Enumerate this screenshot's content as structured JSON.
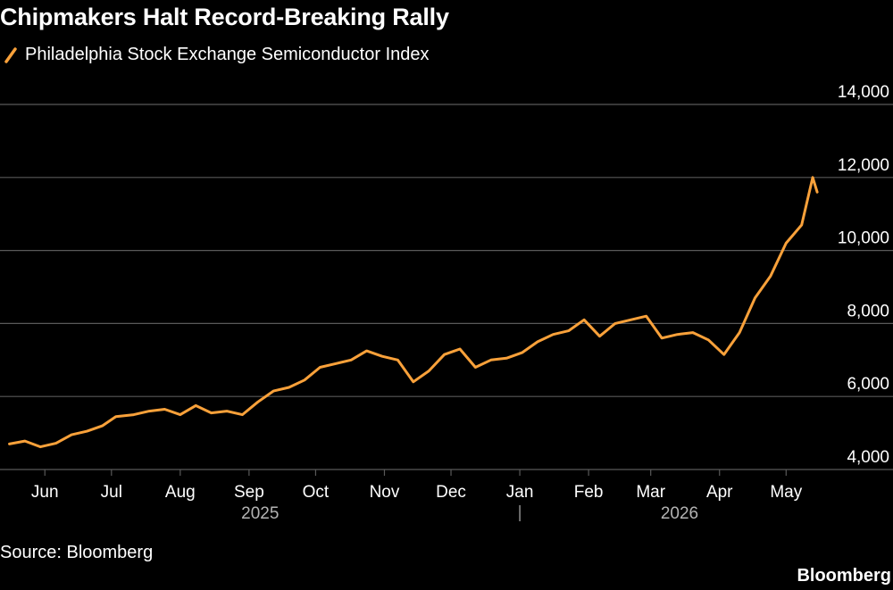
{
  "title": "Chipmakers Halt Record-Breaking Rally",
  "source": "Source: Bloomberg",
  "logo": "Bloomberg",
  "colors": {
    "background": "#000000",
    "series": "#f9a13a",
    "grid": "#595959",
    "text": "#ffffff",
    "muted": "#b3b3b3"
  },
  "chart_data": {
    "type": "line",
    "series": [
      {
        "name": "Philadelphia Stock Exchange Semiconductor Index",
        "x": [
          "2025-05-16",
          "2025-05-23",
          "2025-05-30",
          "2025-06-06",
          "2025-06-13",
          "2025-06-20",
          "2025-06-27",
          "2025-07-03",
          "2025-07-11",
          "2025-07-18",
          "2025-07-25",
          "2025-08-01",
          "2025-08-08",
          "2025-08-15",
          "2025-08-22",
          "2025-08-29",
          "2025-09-05",
          "2025-09-12",
          "2025-09-19",
          "2025-09-26",
          "2025-10-03",
          "2025-10-10",
          "2025-10-17",
          "2025-10-24",
          "2025-10-31",
          "2025-11-07",
          "2025-11-14",
          "2025-11-21",
          "2025-11-28",
          "2025-12-05",
          "2025-12-12",
          "2025-12-19",
          "2025-12-26",
          "2026-01-02",
          "2026-01-09",
          "2026-01-16",
          "2026-01-23",
          "2026-01-30",
          "2026-02-06",
          "2026-02-13",
          "2026-02-20",
          "2026-02-27",
          "2026-03-06",
          "2026-03-13",
          "2026-03-20",
          "2026-03-27",
          "2026-04-03",
          "2026-04-10",
          "2026-04-17",
          "2026-04-24",
          "2026-05-01",
          "2026-05-08",
          "2026-05-13",
          "2026-05-15"
        ],
        "values": [
          4700,
          4780,
          4620,
          4720,
          4950,
          5050,
          5200,
          5450,
          5500,
          5600,
          5650,
          5500,
          5750,
          5550,
          5600,
          5500,
          5850,
          6150,
          6250,
          6450,
          6800,
          6900,
          7000,
          7250,
          7100,
          7000,
          6400,
          6700,
          7150,
          7300,
          6800,
          7000,
          7050,
          7200,
          7500,
          7700,
          7800,
          8100,
          7650,
          8000,
          8100,
          8200,
          7600,
          7700,
          7750,
          7550,
          7150,
          7750,
          8700,
          9300,
          10200,
          10700,
          12000,
          11600
        ]
      }
    ],
    "y_ticks": [
      "14,000",
      "12,000",
      "10,000",
      "8,000",
      "6,000",
      "4,000"
    ],
    "y_tick_values": [
      14000,
      12000,
      10000,
      8000,
      6000,
      4000
    ],
    "ylim": [
      3600,
      14200
    ],
    "x_ticks": [
      {
        "label": "Jun",
        "date": "2025-06-01"
      },
      {
        "label": "Jul",
        "date": "2025-07-01"
      },
      {
        "label": "Aug",
        "date": "2025-08-01"
      },
      {
        "label": "Sep",
        "date": "2025-09-01"
      },
      {
        "label": "Oct",
        "date": "2025-10-01"
      },
      {
        "label": "Nov",
        "date": "2025-11-01"
      },
      {
        "label": "Dec",
        "date": "2025-12-01"
      },
      {
        "label": "Jan",
        "date": "2026-01-01"
      },
      {
        "label": "Feb",
        "date": "2026-02-01"
      },
      {
        "label": "Mar",
        "date": "2026-03-01"
      },
      {
        "label": "Apr",
        "date": "2026-04-01"
      },
      {
        "label": "May",
        "date": "2026-05-01"
      }
    ],
    "x_range": [
      "2025-05-15",
      "2026-05-21"
    ],
    "year_labels": [
      {
        "label": "2025",
        "date": "2025-09-06"
      },
      {
        "label": "2026",
        "date": "2026-03-14"
      }
    ],
    "year_divider_date": "2026-01-01",
    "grid": true,
    "legend_position": "top-left"
  }
}
